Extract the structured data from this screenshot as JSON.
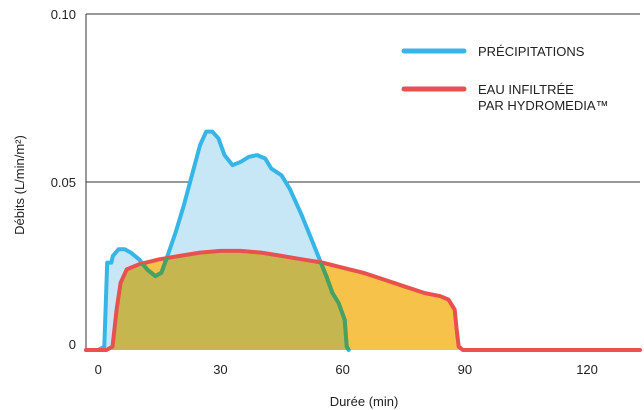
{
  "chart_data": {
    "type": "area",
    "xlabel": "Durée (min)",
    "ylabel": "Débits (L/min/m²)",
    "xlim": [
      -3,
      133
    ],
    "ylim": [
      0,
      0.1
    ],
    "x_ticks": [
      0,
      30,
      60,
      90,
      120
    ],
    "y_ticks": [
      {
        "value": 0,
        "label": "0"
      },
      {
        "value": 0.05,
        "label": "0.05"
      },
      {
        "value": 0.1,
        "label": "0.10"
      }
    ],
    "gridlines_y": [
      0.05,
      0.1
    ],
    "legend_position": "top-right",
    "series": [
      {
        "name": "PRÉCIPITATIONS",
        "line_color": "#36b6e6",
        "fill_color": "#c7e7f6",
        "points": [
          [
            -3,
            0
          ],
          [
            0,
            0
          ],
          [
            1.5,
            0.001
          ],
          [
            2.2,
            0.026
          ],
          [
            3.2,
            0.026
          ],
          [
            3.6,
            0.028
          ],
          [
            5,
            0.03
          ],
          [
            6.5,
            0.03
          ],
          [
            8,
            0.029
          ],
          [
            10,
            0.027
          ],
          [
            12,
            0.024
          ],
          [
            14,
            0.022
          ],
          [
            15.5,
            0.023
          ],
          [
            17,
            0.028
          ],
          [
            19,
            0.035
          ],
          [
            21,
            0.043
          ],
          [
            23,
            0.052
          ],
          [
            25,
            0.061
          ],
          [
            26.5,
            0.065
          ],
          [
            28,
            0.065
          ],
          [
            29.5,
            0.063
          ],
          [
            31,
            0.058
          ],
          [
            33,
            0.055
          ],
          [
            35,
            0.056
          ],
          [
            37,
            0.0575
          ],
          [
            39,
            0.058
          ],
          [
            41,
            0.057
          ],
          [
            42.5,
            0.054
          ],
          [
            45,
            0.052
          ],
          [
            47,
            0.048
          ],
          [
            50,
            0.04
          ],
          [
            53,
            0.031
          ],
          [
            56,
            0.022
          ],
          [
            57.5,
            0.017
          ],
          [
            59,
            0.014
          ],
          [
            60.5,
            0.009
          ],
          [
            61,
            0.001
          ],
          [
            61.5,
            0
          ]
        ]
      },
      {
        "name": "EAU INFILTRÉE\nPAR HYDROMEDIA™",
        "line_color": "#e8514e",
        "fill_color": "#f6c24a",
        "points": [
          [
            -3,
            0
          ],
          [
            2,
            0
          ],
          [
            3.5,
            0.001
          ],
          [
            4.5,
            0.012
          ],
          [
            5.5,
            0.02
          ],
          [
            7,
            0.024
          ],
          [
            10,
            0.0255
          ],
          [
            15,
            0.027
          ],
          [
            20,
            0.028
          ],
          [
            25,
            0.029
          ],
          [
            30,
            0.0295
          ],
          [
            35,
            0.0295
          ],
          [
            40,
            0.029
          ],
          [
            45,
            0.028
          ],
          [
            50,
            0.027
          ],
          [
            55,
            0.026
          ],
          [
            60,
            0.0245
          ],
          [
            65,
            0.023
          ],
          [
            70,
            0.021
          ],
          [
            75,
            0.019
          ],
          [
            80,
            0.017
          ],
          [
            84,
            0.016
          ],
          [
            86,
            0.015
          ],
          [
            87.5,
            0.012
          ],
          [
            88,
            0.006
          ],
          [
            88.5,
            0.001
          ],
          [
            89.5,
            0
          ],
          [
            133,
            0
          ]
        ]
      }
    ],
    "overlap_fill_color": "#c6b64f",
    "overlap_line_color": "#4aa05e"
  }
}
